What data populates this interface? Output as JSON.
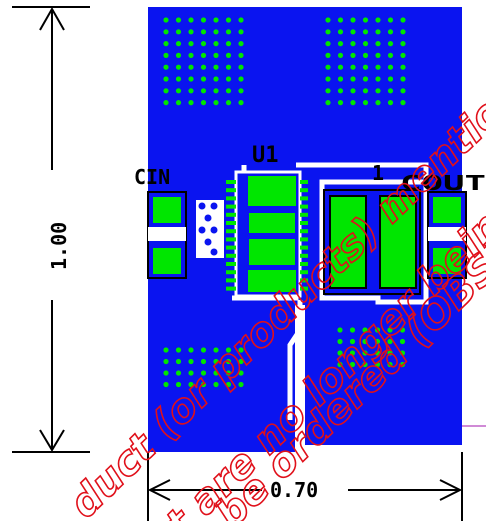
{
  "colors": {
    "board": "#0a14f0",
    "copper": "#00e600",
    "via": "#00e600",
    "outline": "#000000",
    "trace": "#ffffff",
    "dimension": "#000000",
    "pink_line": "#d08ad6",
    "watermark": "#e0101a"
  },
  "labels": {
    "u1": "U1",
    "cin": "CIN",
    "cout": "COUT",
    "l1": "1"
  },
  "dimensions": {
    "height": "1.00",
    "width": "0.70"
  },
  "watermark": {
    "line1": "duct (or products) mentioned in",
    "line2": "t are no longer being manuf",
    "line3": "be ordered (OBS)"
  }
}
